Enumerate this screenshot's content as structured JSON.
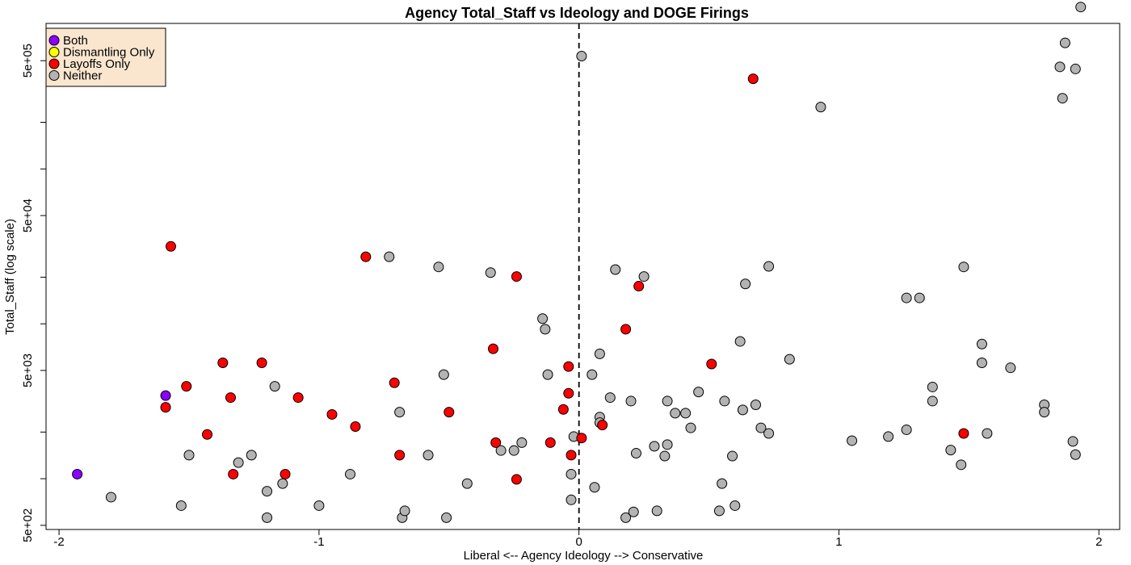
{
  "chart_data": {
    "type": "scatter",
    "title": "Agency Total_Staff vs Ideology and DOGE Firings",
    "xlabel": "Liberal <-- Agency Ideology --> Conservative",
    "ylabel": "Total_Staff (log scale)",
    "y_scale": "log",
    "xlim": [
      -2.05,
      2.08
    ],
    "ylim": [
      470,
      870000
    ],
    "x_ticks": [
      -2,
      -1,
      0,
      1,
      2
    ],
    "x_tick_labels": [
      "-2",
      "-1",
      "0",
      "1",
      "2"
    ],
    "y_ticks": [
      500,
      1000,
      2000,
      5000,
      10000,
      20000,
      50000,
      100000,
      200000,
      500000
    ],
    "y_tick_labels": [
      "5e+02",
      "",
      "",
      "5e+03",
      "",
      "",
      "5e+04",
      "",
      "",
      "5e+05"
    ],
    "vline_x": 0,
    "vline_style": "dashed",
    "grid": false,
    "legend_position": "top-left",
    "legend_background": "#FAE6CF",
    "categories": [
      {
        "name": "Both",
        "color": "#8B00FF"
      },
      {
        "name": "Dismantling Only",
        "color": "#FFFF00"
      },
      {
        "name": "Layoffs Only",
        "color": "#FF0000"
      },
      {
        "name": "Neither",
        "color": "#B3B3B3"
      }
    ],
    "series": [
      {
        "name": "Both",
        "points": [
          [
            -1.93,
            1070
          ],
          [
            -1.59,
            3440
          ]
        ]
      },
      {
        "name": "Dismantling Only",
        "points": []
      },
      {
        "name": "Layoffs Only",
        "points": [
          [
            -1.57,
            31600
          ],
          [
            -1.59,
            2890
          ],
          [
            -1.51,
            3950
          ],
          [
            -1.43,
            1930
          ],
          [
            -1.37,
            5600
          ],
          [
            -1.34,
            3340
          ],
          [
            -1.33,
            1070
          ],
          [
            -1.22,
            5600
          ],
          [
            -1.13,
            1070
          ],
          [
            -1.08,
            3340
          ],
          [
            -0.95,
            2600
          ],
          [
            -0.86,
            2170
          ],
          [
            -0.82,
            27100
          ],
          [
            -0.71,
            4160
          ],
          [
            -0.69,
            1420
          ],
          [
            -0.5,
            2690
          ],
          [
            -0.33,
            6900
          ],
          [
            -0.32,
            1710
          ],
          [
            -0.24,
            20200
          ],
          [
            -0.24,
            990
          ],
          [
            -0.11,
            1710
          ],
          [
            -0.06,
            2800
          ],
          [
            -0.04,
            3560
          ],
          [
            -0.04,
            5300
          ],
          [
            -0.03,
            1420
          ],
          [
            0.01,
            1830
          ],
          [
            0.09,
            2220
          ],
          [
            0.18,
            9230
          ],
          [
            0.23,
            17500
          ],
          [
            0.51,
            5500
          ],
          [
            0.67,
            382000
          ],
          [
            1.48,
            1960
          ]
        ]
      },
      {
        "name": "Neither",
        "points": [
          [
            -1.8,
            760
          ],
          [
            -1.53,
            670
          ],
          [
            -1.5,
            1420
          ],
          [
            -1.31,
            1270
          ],
          [
            -1.26,
            1420
          ],
          [
            -1.2,
            830
          ],
          [
            -1.2,
            560
          ],
          [
            -1.17,
            3950
          ],
          [
            -1.14,
            930
          ],
          [
            -1.0,
            670
          ],
          [
            -0.88,
            1070
          ],
          [
            -0.73,
            27100
          ],
          [
            -0.69,
            2690
          ],
          [
            -0.68,
            560
          ],
          [
            -0.67,
            620
          ],
          [
            -0.58,
            1420
          ],
          [
            -0.54,
            23300
          ],
          [
            -0.52,
            4700
          ],
          [
            -0.51,
            560
          ],
          [
            -0.43,
            930
          ],
          [
            -0.34,
            21400
          ],
          [
            -0.3,
            1520
          ],
          [
            -0.25,
            1520
          ],
          [
            -0.22,
            1710
          ],
          [
            -0.14,
            10800
          ],
          [
            -0.13,
            9230
          ],
          [
            -0.12,
            4700
          ],
          [
            -0.03,
            1070
          ],
          [
            -0.03,
            730
          ],
          [
            -0.02,
            1870
          ],
          [
            0.01,
            535000
          ],
          [
            0.05,
            4700
          ],
          [
            0.06,
            880
          ],
          [
            0.08,
            6400
          ],
          [
            0.08,
            2500
          ],
          [
            0.08,
            2300
          ],
          [
            0.12,
            3340
          ],
          [
            0.14,
            22400
          ],
          [
            0.18,
            560
          ],
          [
            0.2,
            3170
          ],
          [
            0.21,
            610
          ],
          [
            0.22,
            1460
          ],
          [
            0.25,
            20200
          ],
          [
            0.29,
            1620
          ],
          [
            0.3,
            620
          ],
          [
            0.33,
            1400
          ],
          [
            0.34,
            1660
          ],
          [
            0.34,
            3170
          ],
          [
            0.37,
            2650
          ],
          [
            0.41,
            2650
          ],
          [
            0.43,
            2130
          ],
          [
            0.46,
            3630
          ],
          [
            0.54,
            620
          ],
          [
            0.55,
            930
          ],
          [
            0.56,
            3170
          ],
          [
            0.59,
            1400
          ],
          [
            0.6,
            670
          ],
          [
            0.62,
            7700
          ],
          [
            0.63,
            2780
          ],
          [
            0.64,
            18100
          ],
          [
            0.68,
            3000
          ],
          [
            0.7,
            2130
          ],
          [
            0.73,
            23500
          ],
          [
            0.73,
            1960
          ],
          [
            0.81,
            5900
          ],
          [
            0.93,
            251000
          ],
          [
            1.05,
            1760
          ],
          [
            1.19,
            1870
          ],
          [
            1.26,
            2070
          ],
          [
            1.26,
            14700
          ],
          [
            1.31,
            14700
          ],
          [
            1.36,
            3910
          ],
          [
            1.36,
            3170
          ],
          [
            1.43,
            1530
          ],
          [
            1.47,
            1230
          ],
          [
            1.48,
            23300
          ],
          [
            1.55,
            5600
          ],
          [
            1.55,
            7400
          ],
          [
            1.57,
            1960
          ],
          [
            1.66,
            5200
          ],
          [
            1.79,
            3000
          ],
          [
            1.79,
            2690
          ],
          [
            1.85,
            456000
          ],
          [
            1.86,
            286000
          ],
          [
            1.87,
            651000
          ],
          [
            1.9,
            1740
          ],
          [
            1.91,
            1430
          ],
          [
            1.91,
            442000
          ],
          [
            1.93,
            1110000
          ]
        ]
      }
    ]
  }
}
